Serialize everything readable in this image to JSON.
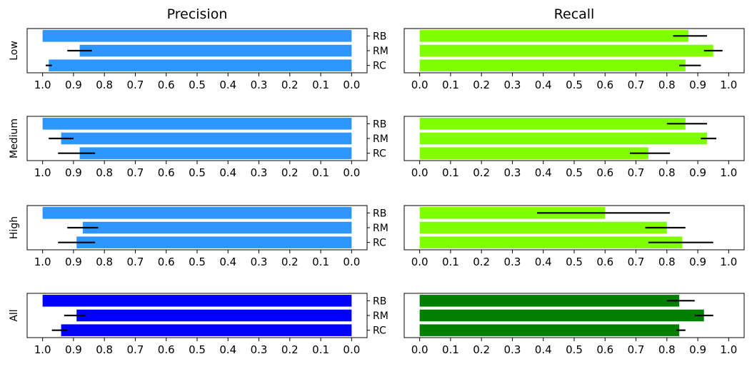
{
  "chart_data": {
    "type": "bar",
    "orientation": "horizontal",
    "columns": [
      {
        "title": "Precision",
        "axis": "reversed",
        "xlim": [
          0.0,
          1.0
        ],
        "ticks": [
          "1.0",
          "0.9",
          "0.8",
          "0.7",
          "0.6",
          "0.5",
          "0.4",
          "0.3",
          "0.2",
          "0.1",
          "0.0"
        ]
      },
      {
        "title": "Recall",
        "axis": "normal",
        "xlim": [
          0.0,
          1.0
        ],
        "ticks": [
          "0.0",
          "0.1",
          "0.2",
          "0.3",
          "0.4",
          "0.5",
          "0.6",
          "0.7",
          "0.8",
          "0.9",
          "1.0"
        ]
      }
    ],
    "categories": [
      "RB",
      "RM",
      "RC"
    ],
    "rows": [
      {
        "label": "Low",
        "precision": {
          "color": "#2e96ff",
          "values": [
            1.0,
            0.88,
            0.98
          ],
          "err_low": [
            null,
            0.92,
            0.99
          ],
          "err_high": [
            null,
            0.84,
            0.97
          ]
        },
        "recall": {
          "color": "#7fff00",
          "values": [
            0.87,
            0.95,
            0.86
          ],
          "err_low": [
            0.82,
            0.92,
            0.84
          ],
          "err_high": [
            0.93,
            0.98,
            0.91
          ]
        }
      },
      {
        "label": "Medium",
        "precision": {
          "color": "#2e96ff",
          "values": [
            1.0,
            0.94,
            0.88
          ],
          "err_low": [
            null,
            0.98,
            0.95
          ],
          "err_high": [
            null,
            0.9,
            0.83
          ]
        },
        "recall": {
          "color": "#7fff00",
          "values": [
            0.86,
            0.93,
            0.74
          ],
          "err_low": [
            0.8,
            0.91,
            0.68
          ],
          "err_high": [
            0.93,
            0.96,
            0.81
          ]
        }
      },
      {
        "label": "High",
        "precision": {
          "color": "#2e96ff",
          "values": [
            1.0,
            0.87,
            0.89
          ],
          "err_low": [
            null,
            0.92,
            0.95
          ],
          "err_high": [
            null,
            0.82,
            0.83
          ]
        },
        "recall": {
          "color": "#7fff00",
          "values": [
            0.6,
            0.8,
            0.85
          ],
          "err_low": [
            0.38,
            0.73,
            0.74
          ],
          "err_high": [
            0.81,
            0.86,
            0.95
          ]
        }
      },
      {
        "label": "All",
        "precision": {
          "color": "#0000ff",
          "values": [
            1.0,
            0.89,
            0.94
          ],
          "err_low": [
            null,
            0.93,
            0.97
          ],
          "err_high": [
            null,
            0.86,
            0.92
          ]
        },
        "recall": {
          "color": "#007f00",
          "values": [
            0.84,
            0.92,
            0.84
          ],
          "err_low": [
            0.8,
            0.89,
            0.83
          ],
          "err_high": [
            0.89,
            0.95,
            0.86
          ]
        }
      }
    ],
    "grid": false,
    "legend": "none"
  }
}
